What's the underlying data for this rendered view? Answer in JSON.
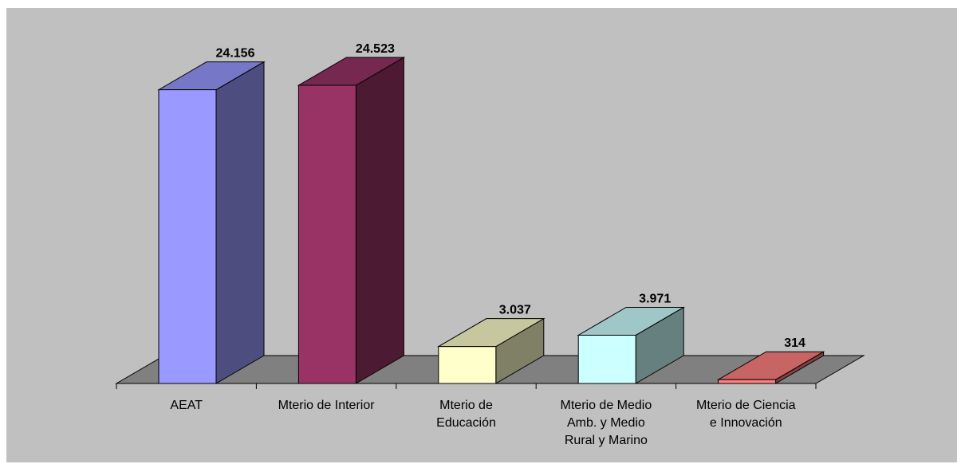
{
  "chart_data": {
    "type": "bar",
    "style": "3d-column",
    "categories": [
      "AEAT",
      "Mterio de Interior",
      "Mterio de Educación",
      "Mterio de Medio Amb. y Medio Rural y Marino",
      "Mterio de Ciencia e Innovación"
    ],
    "category_lines": [
      [
        "AEAT"
      ],
      [
        "Mterio de Interior"
      ],
      [
        "Mterio de",
        "Educación"
      ],
      [
        "Mterio de Medio",
        "Amb. y Medio",
        "Rural y Marino"
      ],
      [
        "Mterio de Ciencia",
        "e Innovación"
      ]
    ],
    "values": [
      24156,
      24523,
      3037,
      3971,
      314
    ],
    "value_labels": [
      "24.156",
      "24.523",
      "3.037",
      "3.971",
      "314"
    ],
    "colors": [
      "#9999ff",
      "#993366",
      "#ffffcc",
      "#ccffff",
      "#ff8080"
    ],
    "title": "",
    "xlabel": "",
    "ylabel": "",
    "legend": "none",
    "grid": false,
    "background": "#c0c0c0",
    "floor_color": "#808080"
  }
}
